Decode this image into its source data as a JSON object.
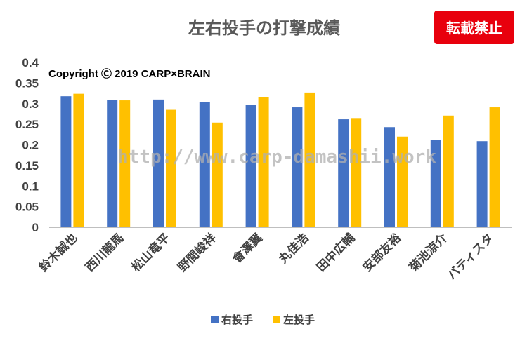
{
  "chart_data": {
    "type": "bar",
    "title": "左右投手の打撃成績",
    "categories": [
      "鈴木誠也",
      "西川龍馬",
      "松山竜平",
      "野間峻祥",
      "會澤翼",
      "丸佳浩",
      "田中広輔",
      "安部友裕",
      "菊池涼介",
      "バティスタ"
    ],
    "series": [
      {
        "name": "右投手",
        "color": "#4472C4",
        "values": [
          0.318,
          0.309,
          0.31,
          0.304,
          0.297,
          0.291,
          0.262,
          0.243,
          0.212,
          0.209
        ]
      },
      {
        "name": "左投手",
        "color": "#FFC000",
        "values": [
          0.324,
          0.308,
          0.285,
          0.254,
          0.315,
          0.327,
          0.265,
          0.22,
          0.271,
          0.291
        ]
      }
    ],
    "ylim": [
      0,
      0.4
    ],
    "yticks": [
      "0",
      "0.05",
      "0.1",
      "0.15",
      "0.2",
      "0.25",
      "0.3",
      "0.35",
      "0.4"
    ],
    "grid": false,
    "legend": "bottom"
  },
  "copyright": "Copyright Ⓒ 2019 CARP×BRAIN",
  "watermark": "http://www.carp-damashii.work",
  "badge": {
    "label": "転載禁止",
    "color": "#E8000D"
  }
}
